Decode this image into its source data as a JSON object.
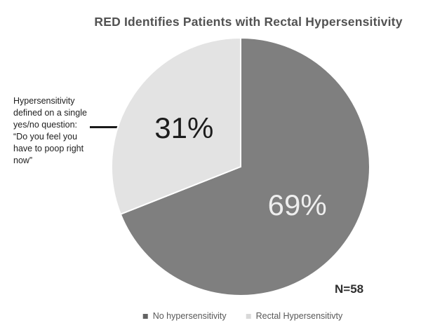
{
  "chart_data": {
    "type": "pie",
    "title": "RED Identifies Patients with Rectal Hypersensitivity",
    "categories": [
      "No hypersensitivity",
      "Rectal Hypersensitivty"
    ],
    "values": [
      69,
      31
    ],
    "labels": [
      "69%",
      "31%"
    ],
    "colors": [
      "#7f7f7f",
      "#e3e3e3"
    ],
    "label_colors": [
      "#eeeeee",
      "#1c1c1c"
    ],
    "legend_marker_colors": [
      "#636363",
      "#d9d9d9"
    ],
    "start_angle_deg": 0,
    "direction": "clockwise",
    "legend_position": "bottom",
    "sample_size": "N=58",
    "annotation": "Hypersensitivity defined on a single yes/no question: “Do you feel you have to poop right now”"
  }
}
